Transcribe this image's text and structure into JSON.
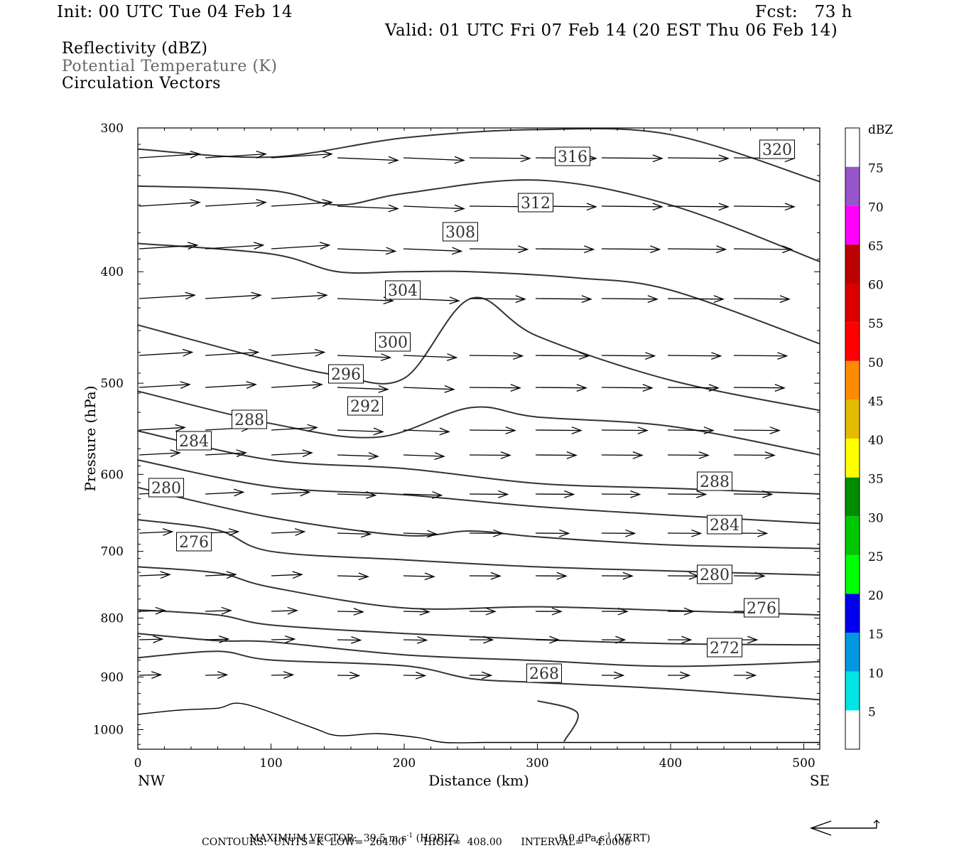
{
  "header": {
    "init": "Init: 00 UTC Tue 04 Feb 14",
    "fcst": "Fcst:   73 h",
    "valid": "Valid: 01 UTC Fri 07 Feb 14 (20 EST Thu 06 Feb 14)"
  },
  "fields": {
    "reflectivity": "Reflectivity (dBZ)",
    "theta": "Potential Temperature (K)",
    "vectors": "Circulation Vectors"
  },
  "footer": {
    "max_label": "MAXIMUM VECTOR:",
    "max_horiz_val": "39.5 m s",
    "max_horiz_unit": "(HORIZ)",
    "max_vert_val": "9.0 dPa s",
    "max_vert_unit": "(VERT)",
    "exponent": "-1",
    "contours": "CONTOURS:  UNITS=K  LOW=  264.00      HIGH=  408.00      INTERVAL=    4.0000"
  },
  "colorbar": {
    "unit": "dBZ",
    "labels": [
      "5",
      "10",
      "15",
      "20",
      "25",
      "30",
      "35",
      "40",
      "45",
      "50",
      "55",
      "60",
      "65",
      "70",
      "75"
    ],
    "colors": [
      "#ffffff",
      "#00e5e5",
      "#0099e0",
      "#0000ee",
      "#00ff00",
      "#00c800",
      "#008c00",
      "#ffff00",
      "#e6bc00",
      "#ff8c00",
      "#ff0000",
      "#dd0000",
      "#bb0000",
      "#ff00ff",
      "#9955cc",
      "#ffffff"
    ]
  },
  "chart_data": {
    "type": "line",
    "title": "Potential Temperature (K)",
    "xlabel": "Distance (km)",
    "ylabel": "Pressure (hPa)",
    "xlim": [
      0,
      512
    ],
    "ylim": [
      1040,
      300
    ],
    "y_scale": "log-pressure",
    "xticks": [
      0,
      100,
      200,
      300,
      400,
      500
    ],
    "yticks": [
      300,
      400,
      500,
      600,
      700,
      800,
      900,
      1000
    ],
    "x_end_labels": [
      "NW",
      "SE"
    ],
    "series": [
      {
        "name": "320",
        "points": [
          [
            0,
            313
          ],
          [
            100,
            318
          ],
          [
            200,
            306
          ],
          [
            300,
            301
          ],
          [
            400,
            304
          ],
          [
            512,
            334
          ]
        ]
      },
      {
        "name": "316",
        "points": [
          [
            0,
            337
          ],
          [
            100,
            340
          ],
          [
            150,
            350
          ],
          [
            200,
            342
          ],
          [
            300,
            333
          ],
          [
            400,
            350
          ],
          [
            512,
            392
          ]
        ]
      },
      {
        "name": "312",
        "points": [
          [
            0,
            378
          ],
          [
            100,
            386
          ],
          [
            150,
            400
          ],
          [
            200,
            400
          ],
          [
            250,
            400
          ],
          [
            330,
            405
          ],
          [
            400,
            415
          ],
          [
            512,
            462
          ]
        ]
      },
      {
        "name": "308",
        "points": [
          [
            0,
            445
          ],
          [
            100,
            478
          ],
          [
            150,
            492
          ],
          [
            200,
            495
          ],
          [
            250,
            422
          ],
          [
            300,
            455
          ],
          [
            400,
            497
          ],
          [
            512,
            528
          ]
        ]
      },
      {
        "name": "304",
        "points": [
          [
            0,
            508
          ],
          [
            100,
            542
          ],
          [
            180,
            557
          ],
          [
            250,
            525
          ],
          [
            300,
            535
          ],
          [
            400,
            545
          ],
          [
            512,
            577
          ]
        ]
      },
      {
        "name": "300",
        "points": [
          [
            0,
            550
          ],
          [
            100,
            583
          ],
          [
            200,
            593
          ],
          [
            300,
            611
          ],
          [
            400,
            617
          ],
          [
            512,
            624
          ]
        ]
      },
      {
        "name": "296",
        "points": [
          [
            0,
            583
          ],
          [
            100,
            615
          ],
          [
            200,
            625
          ],
          [
            300,
            640
          ],
          [
            400,
            651
          ],
          [
            512,
            662
          ]
        ]
      },
      {
        "name": "292",
        "points": [
          [
            0,
            616
          ],
          [
            100,
            654
          ],
          [
            200,
            678
          ],
          [
            250,
            672
          ],
          [
            300,
            680
          ],
          [
            400,
            691
          ],
          [
            512,
            696
          ]
        ]
      },
      {
        "name": "288",
        "points": [
          [
            0,
            657
          ],
          [
            60,
            671
          ],
          [
            100,
            700
          ],
          [
            200,
            712
          ],
          [
            300,
            722
          ],
          [
            400,
            728
          ],
          [
            512,
            734
          ]
        ]
      },
      {
        "name": "284",
        "points": [
          [
            0,
            722
          ],
          [
            60,
            731
          ],
          [
            100,
            752
          ],
          [
            200,
            784
          ],
          [
            300,
            782
          ],
          [
            400,
            788
          ],
          [
            512,
            795
          ]
        ]
      },
      {
        "name": "280",
        "points": [
          [
            0,
            787
          ],
          [
            60,
            795
          ],
          [
            100,
            811
          ],
          [
            200,
            825
          ],
          [
            300,
            835
          ],
          [
            400,
            842
          ],
          [
            512,
            844
          ]
        ]
      },
      {
        "name": "276",
        "points": [
          [
            0,
            825
          ],
          [
            60,
            837
          ],
          [
            100,
            839
          ],
          [
            200,
            861
          ],
          [
            300,
            871
          ],
          [
            400,
            881
          ],
          [
            512,
            873
          ]
        ]
      },
      {
        "name": "272",
        "points": [
          [
            0,
            866
          ],
          [
            60,
            855
          ],
          [
            100,
            870
          ],
          [
            200,
            880
          ],
          [
            250,
            903
          ],
          [
            300,
            910
          ],
          [
            400,
            922
          ],
          [
            512,
            942
          ]
        ]
      },
      {
        "name": "268",
        "points": [
          [
            300,
            944
          ],
          [
            330,
            967
          ],
          [
            320,
            1024
          ]
        ]
      }
    ],
    "contour_labels": [
      "320",
      "316",
      "312",
      "308",
      "304",
      "300",
      "296",
      "292",
      "288",
      "284",
      "280",
      "276",
      "268",
      "288",
      "284",
      "280",
      "276",
      "272",
      "268"
    ],
    "vector_max_horiz": 39.5,
    "vector_max_vert": 9.0,
    "contour_low": 264.0,
    "contour_high": 408.0,
    "contour_interval": 4.0
  }
}
